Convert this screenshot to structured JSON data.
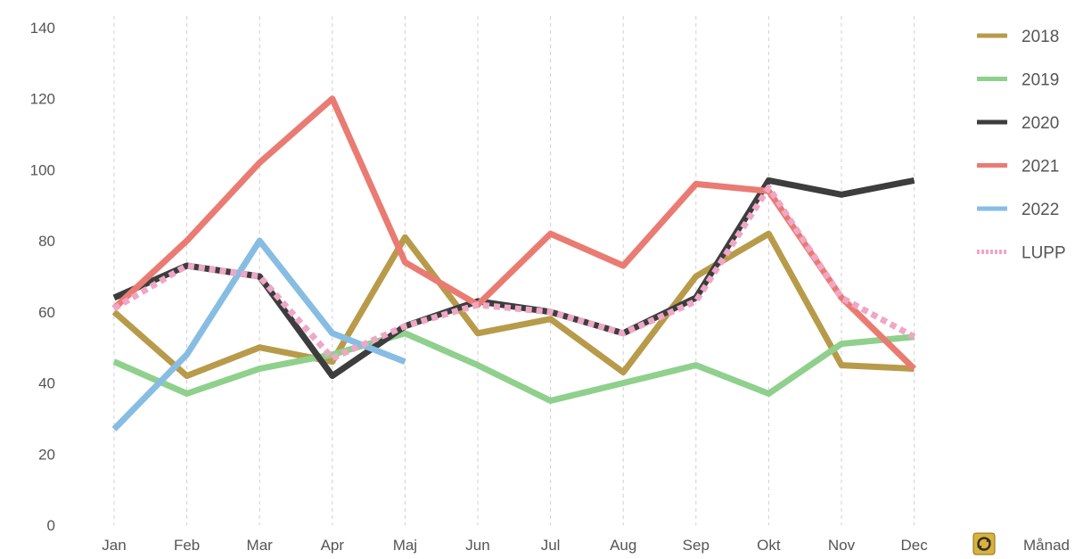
{
  "chart_data": {
    "type": "line",
    "title": "",
    "xlabel": "Månad",
    "ylabel": "",
    "ylim": [
      0,
      140
    ],
    "yticks": [
      0,
      20,
      40,
      60,
      80,
      100,
      120,
      140
    ],
    "grid": "vertical dashed",
    "legend_position": "right",
    "categories": [
      "Jan",
      "Feb",
      "Mar",
      "Apr",
      "Maj",
      "Jun",
      "Jul",
      "Aug",
      "Sep",
      "Okt",
      "Nov",
      "Dec"
    ],
    "series": [
      {
        "name": "2018",
        "color": "#b89b4a",
        "dashed": false,
        "values": [
          60,
          42,
          50,
          46,
          81,
          54,
          58,
          43,
          70,
          82,
          45,
          44
        ]
      },
      {
        "name": "2019",
        "color": "#8fd08c",
        "dashed": false,
        "values": [
          46,
          37,
          44,
          48,
          54,
          45,
          35,
          40,
          45,
          37,
          51,
          53
        ]
      },
      {
        "name": "2020",
        "color": "#3d3d3d",
        "dashed": false,
        "values": [
          64,
          73,
          70,
          42,
          56,
          63,
          60,
          54,
          64,
          97,
          93,
          97
        ]
      },
      {
        "name": "2021",
        "color": "#ea7b73",
        "dashed": false,
        "values": [
          61,
          80,
          102,
          120,
          74,
          62,
          82,
          73,
          96,
          94,
          64,
          44
        ]
      },
      {
        "name": "2022",
        "color": "#87bde3",
        "dashed": false,
        "values": [
          27,
          48,
          80,
          54,
          46,
          null,
          null,
          null,
          null,
          null,
          null,
          null
        ]
      },
      {
        "name": "LUPP",
        "color": "#f0a6c6",
        "dashed": true,
        "values": [
          61,
          73,
          70,
          47,
          56,
          62,
          60,
          54,
          63,
          95,
          64,
          53
        ]
      }
    ]
  },
  "icons": {
    "refresh": "refresh-icon"
  }
}
